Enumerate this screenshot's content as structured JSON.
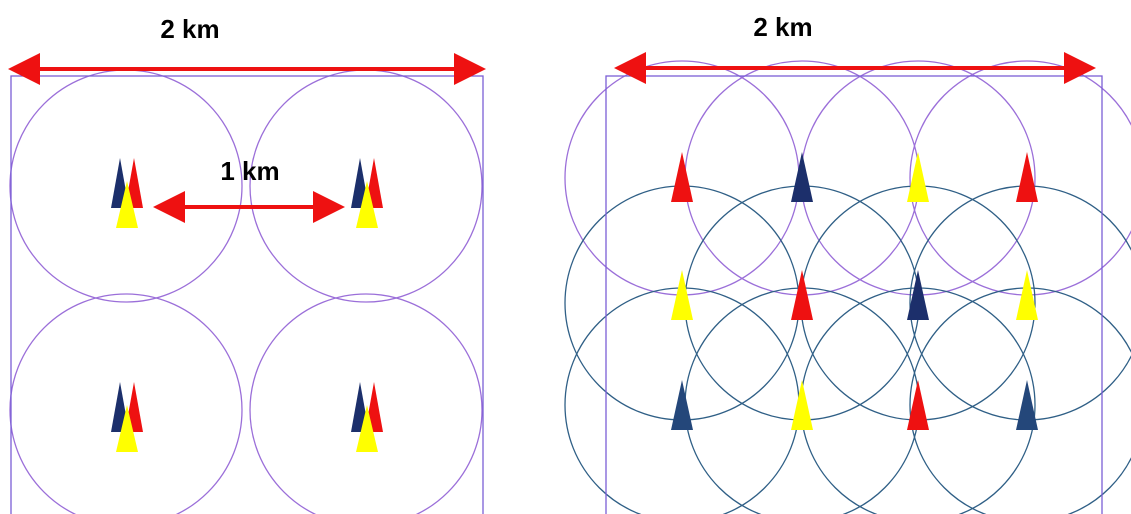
{
  "left_panel": {
    "width_label": "2 km",
    "spacing_label": "1 km"
  },
  "right_panel": {
    "width_label": "2 km"
  },
  "colors": {
    "arrow": "#ee1111",
    "frame": "#7b5fd6",
    "circle_purple": "#9b6fd9",
    "circle_blue": "#2f5f86",
    "site_navy": "#1c2f6b",
    "site_red": "#ee1111",
    "site_yellow": "#ffff00",
    "site_slate": "#24477a"
  }
}
